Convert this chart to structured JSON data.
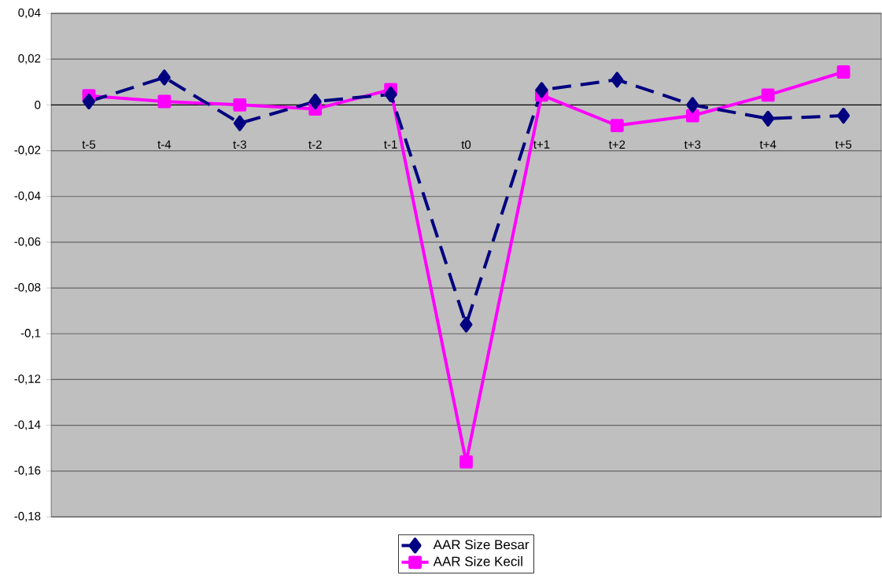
{
  "chart_data": {
    "type": "line",
    "categories": [
      "t-5",
      "t-4",
      "t-3",
      "t-2",
      "t-1",
      "t0",
      "t+1",
      "t+2",
      "t+3",
      "t+4",
      "t+5"
    ],
    "series": [
      {
        "name": "AAR Size Besar",
        "color": "#000080",
        "marker": "diamond",
        "line_style": "dashed",
        "values": [
          0.0015,
          0.012,
          -0.008,
          0.0015,
          0.0046,
          -0.096,
          0.0065,
          0.011,
          0.0,
          -0.006,
          -0.0047
        ]
      },
      {
        "name": "AAR Size Kecil",
        "color": "#ff00ff",
        "marker": "square",
        "line_style": "solid",
        "values": [
          0.004,
          0.0015,
          0.0,
          -0.0018,
          0.0067,
          -0.156,
          0.0043,
          -0.009,
          -0.0047,
          0.0043,
          0.0144
        ]
      }
    ],
    "ylim": [
      -0.18,
      0.04
    ],
    "yticks": [
      {
        "value": -0.18,
        "label": "-0,18"
      },
      {
        "value": -0.16,
        "label": "-0,16"
      },
      {
        "value": -0.14,
        "label": "-0,14"
      },
      {
        "value": -0.12,
        "label": "-0,12"
      },
      {
        "value": -0.1,
        "label": "-0,1"
      },
      {
        "value": -0.08,
        "label": "-0,08"
      },
      {
        "value": -0.06,
        "label": "-0,06"
      },
      {
        "value": -0.04,
        "label": "-0,04"
      },
      {
        "value": -0.02,
        "label": "-0,02"
      },
      {
        "value": 0,
        "label": "0"
      },
      {
        "value": 0.02,
        "label": "0,02"
      },
      {
        "value": 0.04,
        "label": "0,04"
      }
    ],
    "grid": "y",
    "legend": "bottom"
  }
}
